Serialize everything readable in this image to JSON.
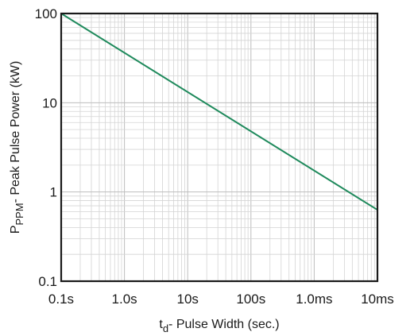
{
  "chart_data": {
    "type": "line",
    "x_scale": "log",
    "y_scale": "log",
    "grid": true,
    "xlim": [
      1e-07,
      0.01
    ],
    "ylim": [
      0.1,
      100
    ],
    "x_ticks": [
      {
        "value": 1e-07,
        "label": "0.1s"
      },
      {
        "value": 1e-06,
        "label": "1.0s"
      },
      {
        "value": 1e-05,
        "label": "10s"
      },
      {
        "value": 0.0001,
        "label": "100s"
      },
      {
        "value": 0.001,
        "label": "1.0ms"
      },
      {
        "value": 0.01,
        "label": "10ms"
      }
    ],
    "y_ticks": [
      {
        "value": 0.1,
        "label": "0.1"
      },
      {
        "value": 1,
        "label": "1"
      },
      {
        "value": 10,
        "label": "10"
      },
      {
        "value": 100,
        "label": "100"
      }
    ],
    "xlabel": {
      "main": "t",
      "sub": "d",
      "rest": "- Pulse Width (sec.)"
    },
    "ylabel": {
      "main": "P",
      "sub": "PPM",
      "rest": "- Peak Pulse Power (kW)"
    },
    "series": [
      {
        "color": "#1f8a5c",
        "x": [
          1e-07,
          0.01
        ],
        "y": [
          100,
          0.63
        ]
      }
    ]
  }
}
